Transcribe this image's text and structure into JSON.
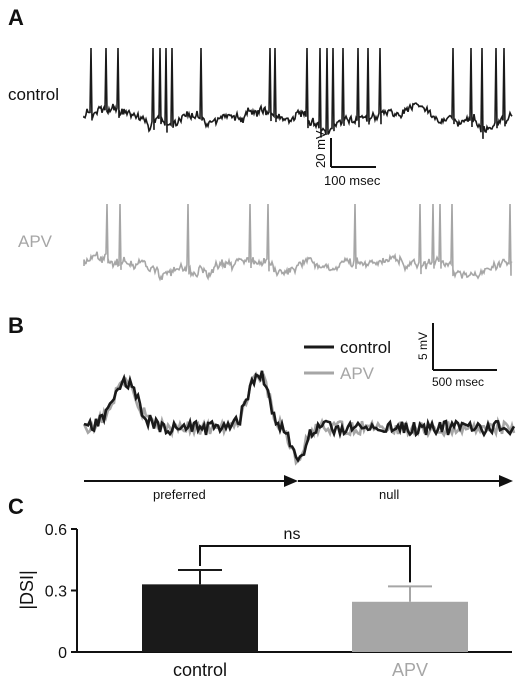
{
  "panels": {
    "a": {
      "letter": "A",
      "trace_labels": [
        "control",
        "APV"
      ],
      "scalebar": {
        "v_label": "20 mV",
        "h_label": "100 msec"
      }
    },
    "b": {
      "letter": "B",
      "legend": [
        "control",
        "APV"
      ],
      "scalebar": {
        "v_label": "5 mV",
        "h_label": "500 msec"
      },
      "direction_labels": [
        "preferred",
        "null"
      ]
    },
    "c": {
      "letter": "C",
      "significance": "ns"
    }
  },
  "colors": {
    "control": "#1a1a1a",
    "apv": "#a6a6a6"
  },
  "chart_data": [
    {
      "type": "line",
      "panel": "A",
      "series": [
        {
          "name": "control"
        },
        {
          "name": "APV"
        }
      ],
      "scalebar": {
        "y": 20,
        "y_unit": "mV",
        "x": 100,
        "x_unit": "msec"
      }
    },
    {
      "type": "line",
      "panel": "B",
      "series": [
        {
          "name": "control"
        },
        {
          "name": "APV"
        }
      ],
      "scalebar": {
        "y": 5,
        "y_unit": "mV",
        "x": 500,
        "x_unit": "msec"
      }
    },
    {
      "type": "bar",
      "panel": "C",
      "categories": [
        "control",
        "APV"
      ],
      "values": [
        0.33,
        0.245
      ],
      "errors": [
        0.07,
        0.075
      ],
      "ylabel": "|DSI|",
      "ylim": [
        0,
        0.6
      ],
      "yticks": [
        "0",
        "0.3",
        "0.6"
      ],
      "annotation": "ns"
    }
  ]
}
